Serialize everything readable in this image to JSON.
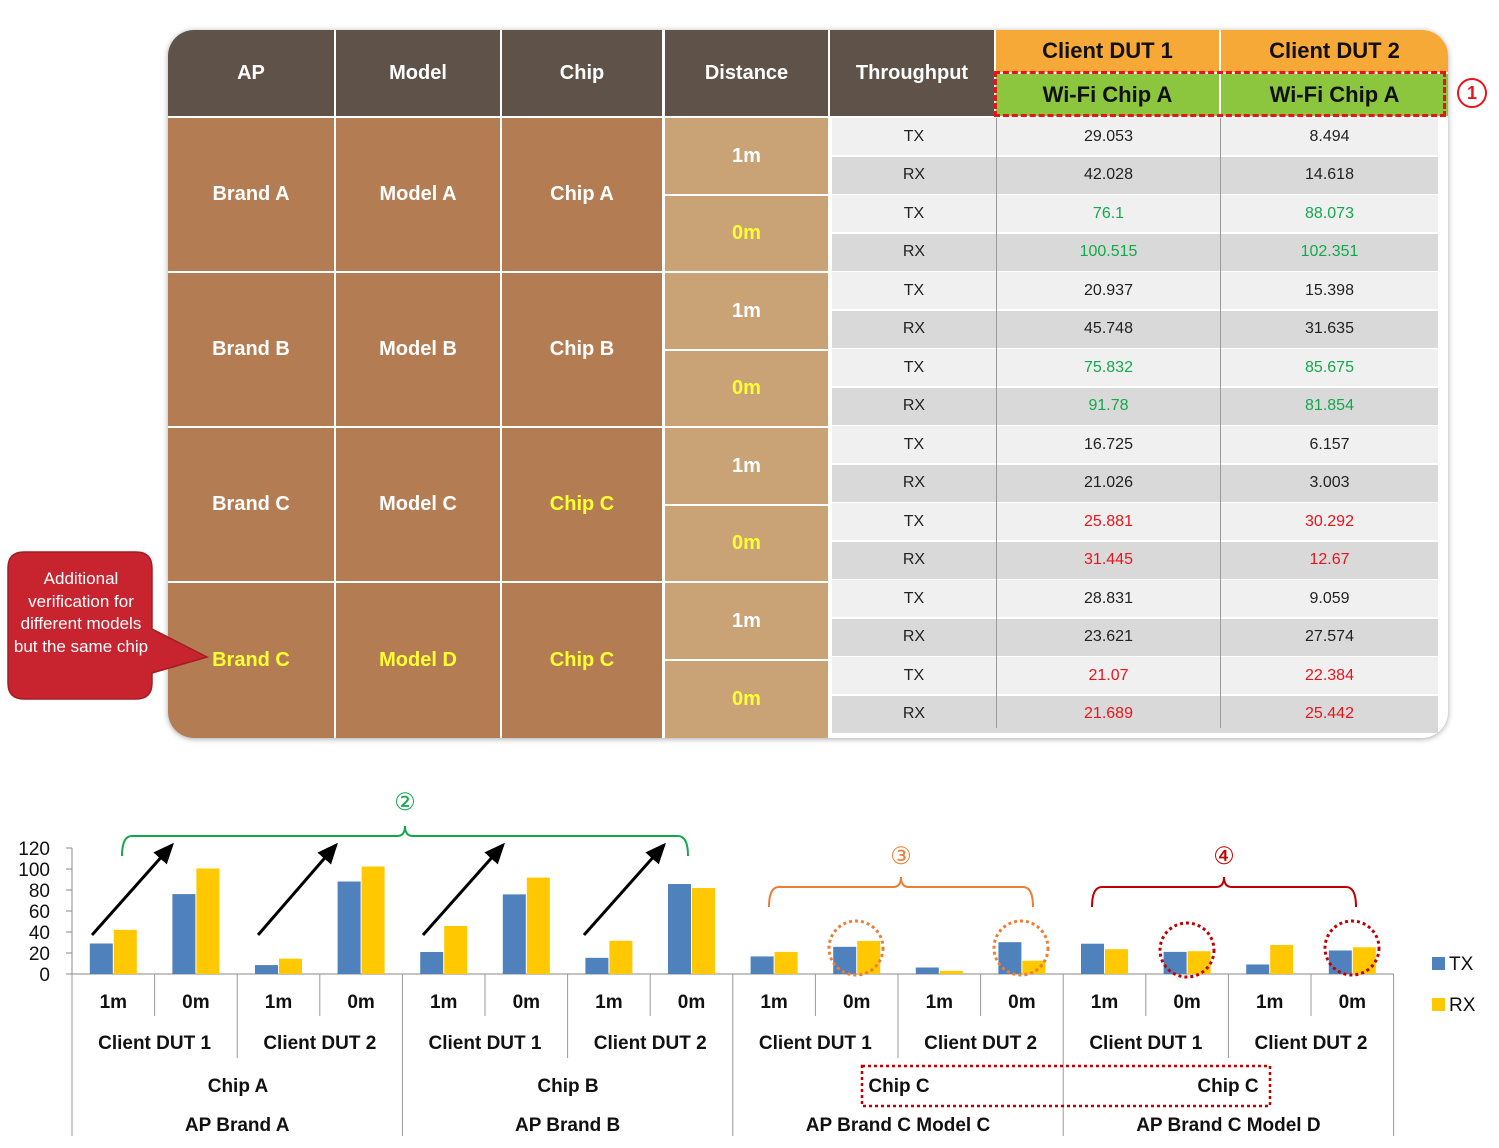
{
  "table": {
    "headers": {
      "ap": "AP",
      "model": "Model",
      "chip": "Chip",
      "distance": "Distance",
      "throughput": "Throughput",
      "dut1": "Client DUT 1",
      "dut2": "Client DUT 2",
      "wifi1": "Wi-Fi Chip A",
      "wifi2": "Wi-Fi Chip A"
    },
    "marker": "1",
    "groups": [
      {
        "ap": "Brand A",
        "model": "Model A",
        "chip": "Chip A"
      },
      {
        "ap": "Brand B",
        "model": "Model B",
        "chip": "Chip B"
      },
      {
        "ap": "Brand C",
        "model": "Model C",
        "chip": "Chip C"
      },
      {
        "ap": "Brand C",
        "model": "Model D",
        "chip": "Chip C"
      }
    ],
    "distances": [
      "1m",
      "0m",
      "1m",
      "0m",
      "1m",
      "0m",
      "1m",
      "0m"
    ],
    "rows": [
      {
        "tp": "TX",
        "d1": "29.053",
        "d2": "8.494",
        "tone": "normal"
      },
      {
        "tp": "RX",
        "d1": "42.028",
        "d2": "14.618",
        "tone": "normal"
      },
      {
        "tp": "TX",
        "d1": "76.1",
        "d2": "88.073",
        "tone": "green"
      },
      {
        "tp": "RX",
        "d1": "100.515",
        "d2": "102.351",
        "tone": "green"
      },
      {
        "tp": "TX",
        "d1": "20.937",
        "d2": "15.398",
        "tone": "normal"
      },
      {
        "tp": "RX",
        "d1": "45.748",
        "d2": "31.635",
        "tone": "normal"
      },
      {
        "tp": "TX",
        "d1": "75.832",
        "d2": "85.675",
        "tone": "green"
      },
      {
        "tp": "RX",
        "d1": "91.78",
        "d2": "81.854",
        "tone": "green"
      },
      {
        "tp": "TX",
        "d1": "16.725",
        "d2": "6.157",
        "tone": "normal"
      },
      {
        "tp": "RX",
        "d1": "21.026",
        "d2": "3.003",
        "tone": "normal"
      },
      {
        "tp": "TX",
        "d1": "25.881",
        "d2": "30.292",
        "tone": "red"
      },
      {
        "tp": "RX",
        "d1": "31.445",
        "d2": "12.67",
        "tone": "red"
      },
      {
        "tp": "TX",
        "d1": "28.831",
        "d2": "9.059",
        "tone": "normal"
      },
      {
        "tp": "RX",
        "d1": "23.621",
        "d2": "27.574",
        "tone": "normal"
      },
      {
        "tp": "TX",
        "d1": "21.07",
        "d2": "22.384",
        "tone": "red"
      },
      {
        "tp": "RX",
        "d1": "21.689",
        "d2": "25.442",
        "tone": "red"
      }
    ]
  },
  "callout": "Additional verification for different models but the same chip",
  "colors": {
    "tx": "#4f81bd",
    "rx": "#ffc800",
    "green": "#13a84b",
    "orange": "#ed7d31",
    "red": "#c00000"
  },
  "chart_data": {
    "type": "bar",
    "y_ticks": [
      "0",
      "20",
      "40",
      "60",
      "80",
      "100",
      "120"
    ],
    "ylim": [
      0,
      120
    ],
    "legend_position": "right",
    "categories": [
      "1m",
      "0m",
      "1m",
      "0m",
      "1m",
      "0m",
      "1m",
      "0m",
      "1m",
      "0m",
      "1m",
      "0m",
      "1m",
      "0m",
      "1m",
      "0m"
    ],
    "series": [
      {
        "name": "TX",
        "values": [
          29.053,
          76.1,
          8.494,
          88.073,
          20.937,
          75.832,
          15.398,
          85.675,
          16.725,
          25.881,
          6.157,
          30.292,
          28.831,
          21.07,
          9.059,
          22.384
        ]
      },
      {
        "name": "RX",
        "values": [
          42.028,
          100.515,
          14.618,
          102.351,
          45.748,
          91.78,
          31.635,
          81.854,
          21.026,
          31.445,
          3.003,
          12.67,
          23.621,
          21.689,
          27.574,
          25.442
        ]
      }
    ],
    "client_labels": [
      "Client DUT 1",
      "Client DUT 2",
      "Client DUT 1",
      "Client DUT 2",
      "Client DUT 1",
      "Client DUT 2",
      "Client DUT 1",
      "Client DUT 2"
    ],
    "chip_labels": [
      "Chip  A",
      "Chip  B",
      "Chip  C",
      "Chip  C"
    ],
    "ap_labels": [
      "AP Brand  A",
      "AP Brand  B",
      "AP Brand  C Model  C",
      "AP Brand  C Model  D"
    ],
    "annotations": [
      "②",
      "③",
      "④"
    ]
  }
}
